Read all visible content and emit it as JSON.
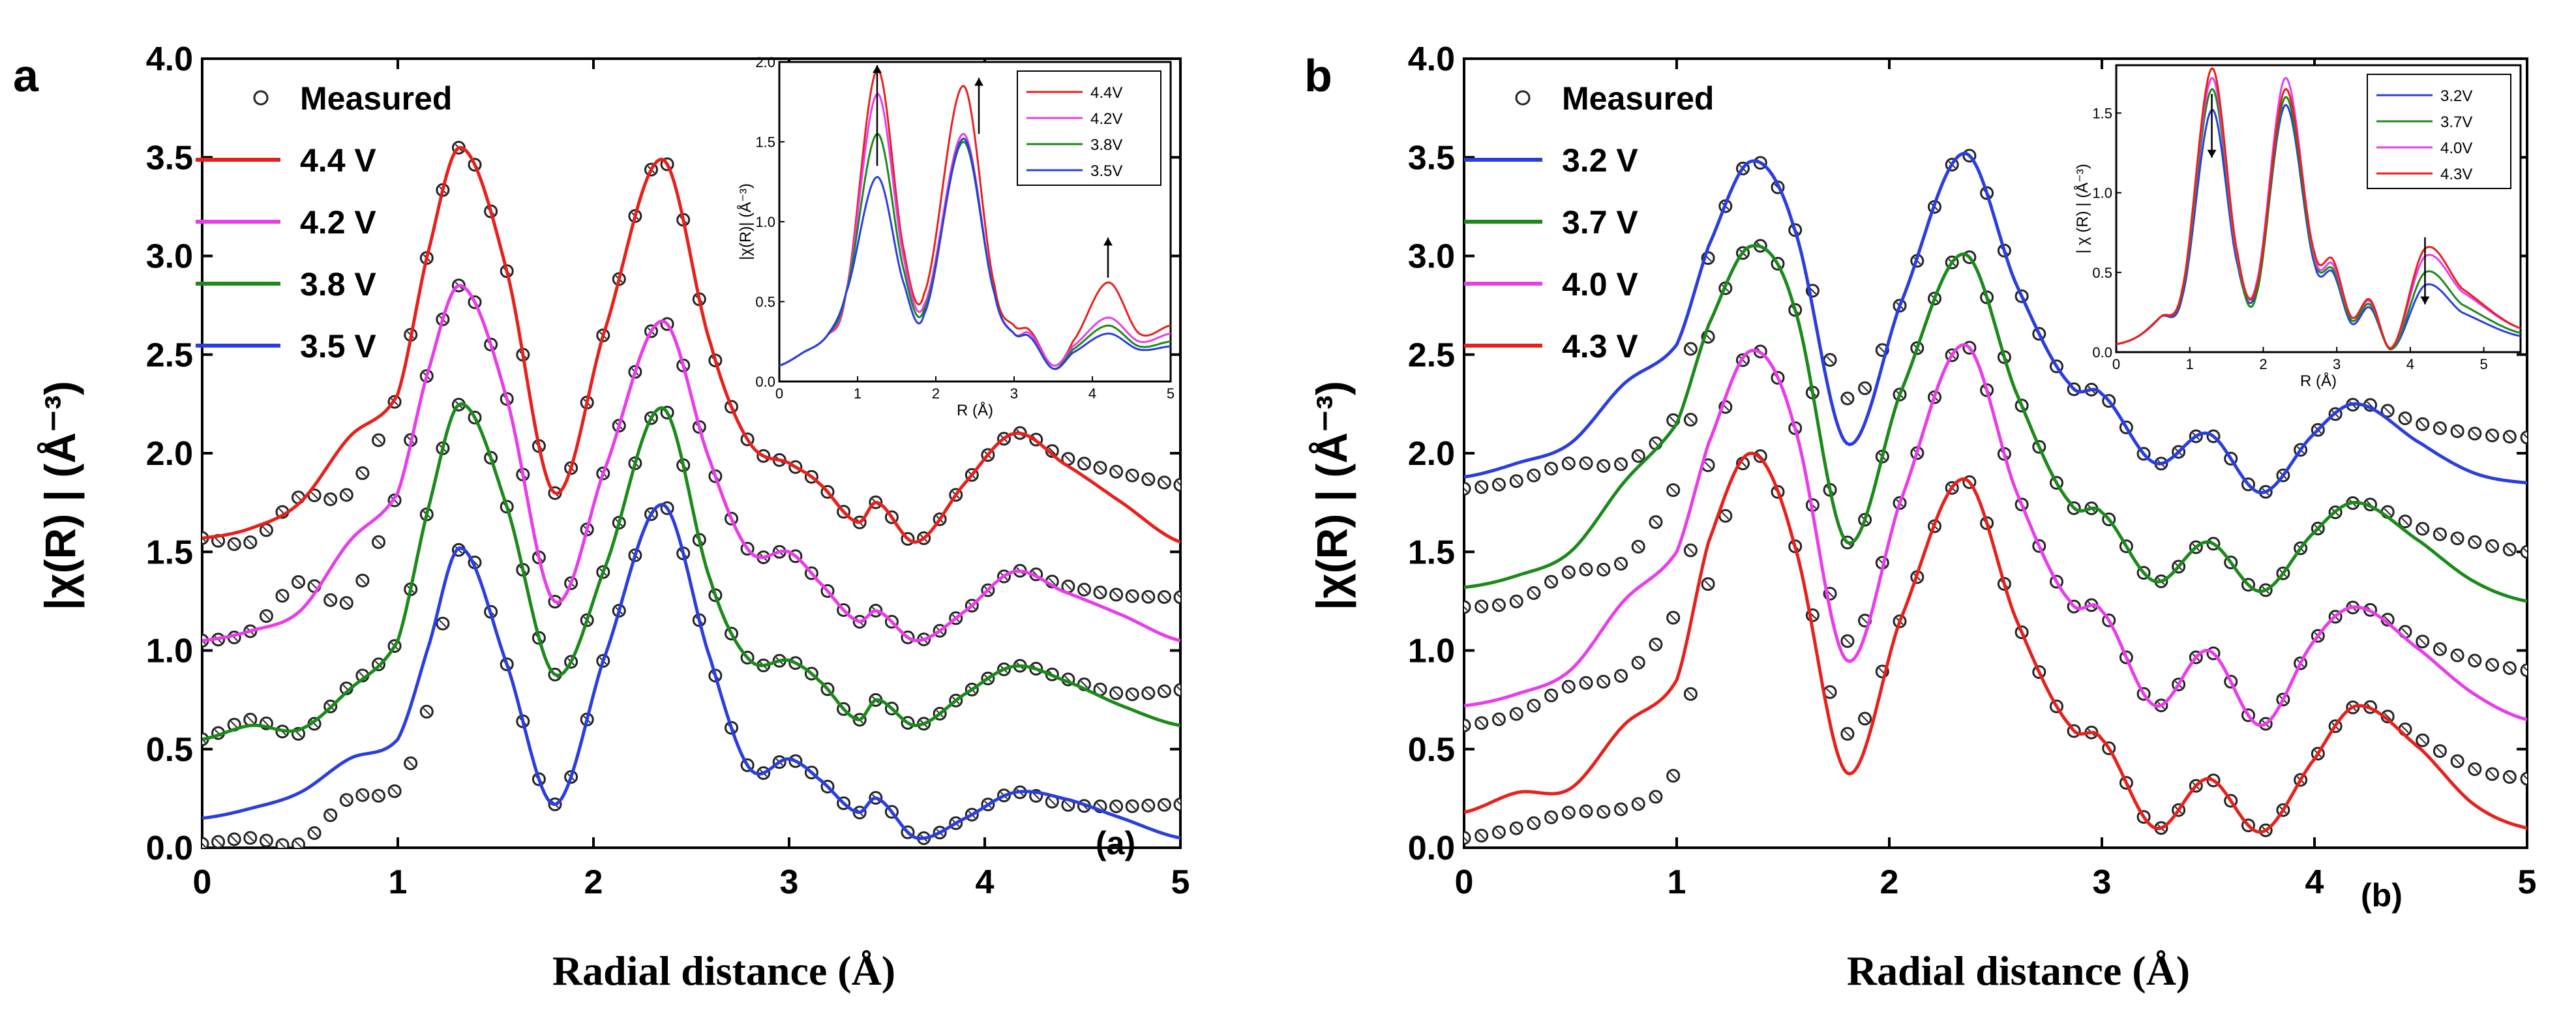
{
  "chart_data": [
    {
      "type": "line",
      "panel_letter": "a",
      "panel_tag": "(a)",
      "xlabel": "Radial distance (Å)",
      "ylabel": "|χ(R) |  (Å⁻³)",
      "xlim": [
        0,
        5
      ],
      "ylim": [
        0,
        4
      ],
      "xticks": [
        "0",
        "1",
        "2",
        "3",
        "4",
        "5"
      ],
      "yticks": [
        "0.0",
        "0.5",
        "1.0",
        "1.5",
        "2.0",
        "2.5",
        "3.0",
        "3.5",
        "4.0"
      ],
      "legend": {
        "measured_label": "Measured",
        "entries": [
          "4.4 V",
          "4.2 V",
          "3.8 V",
          "3.5 V"
        ]
      },
      "x_knots": [
        0,
        0.25,
        0.5,
        0.75,
        1.0,
        1.15,
        1.32,
        1.55,
        1.8,
        2.05,
        2.35,
        2.6,
        2.8,
        3.0,
        3.15,
        3.35,
        3.45,
        3.65,
        3.9,
        4.15,
        4.4,
        4.7,
        5.0
      ],
      "series": [
        {
          "name": "4.4 V",
          "color": "#e8201c",
          "y": [
            1.57,
            1.62,
            1.75,
            2.08,
            2.3,
            3.0,
            3.55,
            2.95,
            1.8,
            2.6,
            3.49,
            2.55,
            2.05,
            1.95,
            1.85,
            1.65,
            1.75,
            1.55,
            1.85,
            2.1,
            1.95,
            1.75,
            1.55
          ],
          "ym": [
            1.57,
            1.55,
            1.78,
            1.8,
            2.3,
            3.0,
            3.55,
            2.95,
            1.8,
            2.6,
            3.49,
            2.55,
            2.05,
            1.95,
            1.85,
            1.65,
            1.75,
            1.55,
            1.85,
            2.1,
            1.98,
            1.9,
            1.84
          ]
        },
        {
          "name": "4.2 V",
          "color": "#e83de8",
          "y": [
            1.05,
            1.1,
            1.2,
            1.55,
            1.8,
            2.4,
            2.85,
            2.3,
            1.25,
            1.9,
            2.67,
            1.95,
            1.5,
            1.5,
            1.35,
            1.15,
            1.2,
            1.05,
            1.2,
            1.4,
            1.3,
            1.18,
            1.05
          ],
          "ym": [
            1.05,
            1.1,
            1.35,
            1.25,
            1.8,
            2.4,
            2.85,
            2.3,
            1.25,
            1.9,
            2.67,
            1.95,
            1.5,
            1.5,
            1.35,
            1.15,
            1.2,
            1.05,
            1.2,
            1.4,
            1.33,
            1.28,
            1.27
          ]
        },
        {
          "name": "3.8 V",
          "color": "#1a8a1a",
          "y": [
            0.55,
            0.62,
            0.6,
            0.8,
            1.05,
            1.7,
            2.25,
            1.75,
            0.88,
            1.4,
            2.23,
            1.35,
            0.95,
            0.95,
            0.85,
            0.65,
            0.75,
            0.62,
            0.78,
            0.92,
            0.85,
            0.72,
            0.62
          ],
          "ym": [
            0.55,
            0.65,
            0.58,
            0.82,
            1.05,
            1.7,
            2.25,
            1.75,
            0.88,
            1.4,
            2.23,
            1.35,
            0.95,
            0.95,
            0.85,
            0.65,
            0.75,
            0.62,
            0.78,
            0.92,
            0.86,
            0.78,
            0.8
          ]
        },
        {
          "name": "3.5 V",
          "color": "#2a3ee0",
          "y": [
            0.15,
            0.2,
            0.28,
            0.45,
            0.55,
            1.0,
            1.52,
            0.95,
            0.22,
            0.95,
            1.74,
            0.95,
            0.4,
            0.45,
            0.35,
            0.18,
            0.25,
            0.05,
            0.15,
            0.28,
            0.25,
            0.15,
            0.05
          ],
          "ym": [
            0.02,
            0.05,
            0.02,
            0.25,
            0.3,
            0.7,
            1.52,
            0.95,
            0.22,
            0.95,
            1.74,
            0.95,
            0.4,
            0.45,
            0.35,
            0.18,
            0.25,
            0.05,
            0.15,
            0.28,
            0.22,
            0.21,
            0.22
          ]
        }
      ],
      "inset": {
        "xlabel": "R (Å)",
        "ylabel": "|χ(R)| (Å⁻³)",
        "xlim": [
          0,
          5
        ],
        "ylim": [
          0,
          2.0
        ],
        "xticks": [
          "0",
          "1",
          "2",
          "3",
          "4",
          "5"
        ],
        "yticks": [
          "0.0",
          "0.5",
          "1.0",
          "1.5",
          "2.0"
        ],
        "legend": [
          "4.4V",
          "4.2V",
          "3.8V",
          "3.5V"
        ],
        "x_knots": [
          0,
          0.3,
          0.6,
          0.85,
          1.25,
          1.6,
          1.85,
          2.35,
          2.75,
          3.0,
          3.2,
          3.5,
          3.75,
          4.2,
          4.6,
          5.0
        ],
        "series": [
          {
            "name": "4.4V",
            "color": "#e8201c",
            "y": [
              0.1,
              0.18,
              0.28,
              0.55,
              1.95,
              0.8,
              0.55,
              1.85,
              0.6,
              0.35,
              0.32,
              0.1,
              0.25,
              0.62,
              0.3,
              0.35
            ]
          },
          {
            "name": "4.2V",
            "color": "#e83de8",
            "y": [
              0.1,
              0.18,
              0.28,
              0.55,
              1.8,
              0.75,
              0.48,
              1.55,
              0.55,
              0.3,
              0.3,
              0.1,
              0.22,
              0.4,
              0.25,
              0.3
            ]
          },
          {
            "name": "3.8V",
            "color": "#1a8a1a",
            "y": [
              0.1,
              0.18,
              0.28,
              0.55,
              1.55,
              0.68,
              0.45,
              1.5,
              0.55,
              0.3,
              0.28,
              0.08,
              0.2,
              0.35,
              0.22,
              0.25
            ]
          },
          {
            "name": "3.5V",
            "color": "#2a3ee0",
            "y": [
              0.1,
              0.18,
              0.28,
              0.55,
              1.28,
              0.6,
              0.42,
              1.52,
              0.55,
              0.3,
              0.28,
              0.08,
              0.18,
              0.3,
              0.2,
              0.22
            ]
          }
        ]
      }
    },
    {
      "type": "line",
      "panel_letter": "b",
      "panel_tag": "(b)",
      "xlabel": "Radial distance (Å)",
      "ylabel": "|χ(R) |  (Å⁻³)",
      "xlim": [
        0,
        5
      ],
      "ylim": [
        0,
        4
      ],
      "xticks": [
        "0",
        "1",
        "2",
        "3",
        "4",
        "5"
      ],
      "yticks": [
        "0.0",
        "0.5",
        "1.0",
        "1.5",
        "2.0",
        "2.5",
        "3.0",
        "3.5",
        "4.0"
      ],
      "legend": {
        "measured_label": "Measured",
        "entries": [
          "3.2 V",
          "3.7 V",
          "4.0 V",
          "4.3 V"
        ]
      },
      "x_knots": [
        0,
        0.25,
        0.5,
        0.75,
        1.0,
        1.15,
        1.35,
        1.55,
        1.8,
        2.05,
        2.35,
        2.6,
        2.85,
        3.0,
        3.25,
        3.5,
        3.75,
        4.0,
        4.2,
        4.5,
        4.75,
        5.0
      ],
      "series": [
        {
          "name": "3.2 V",
          "color": "#2a3ee0",
          "y": [
            1.88,
            1.95,
            2.05,
            2.35,
            2.55,
            3.05,
            3.48,
            3.15,
            2.05,
            2.75,
            3.52,
            2.85,
            2.35,
            2.3,
            1.95,
            2.1,
            1.8,
            2.1,
            2.25,
            2.05,
            1.9,
            1.85
          ],
          "ym": [
            1.82,
            1.86,
            1.95,
            1.95,
            2.2,
            3.0,
            3.48,
            3.15,
            2.28,
            2.75,
            3.52,
            2.85,
            2.35,
            2.3,
            1.95,
            2.1,
            1.8,
            2.1,
            2.25,
            2.15,
            2.1,
            2.08
          ]
        },
        {
          "name": "3.7 V",
          "color": "#1a8a1a",
          "y": [
            1.32,
            1.38,
            1.5,
            1.85,
            2.15,
            2.65,
            3.05,
            2.75,
            1.55,
            2.3,
            3.01,
            2.3,
            1.75,
            1.7,
            1.35,
            1.55,
            1.3,
            1.6,
            1.75,
            1.55,
            1.35,
            1.25
          ],
          "ym": [
            1.22,
            1.25,
            1.4,
            1.45,
            1.85,
            2.6,
            3.05,
            2.75,
            1.55,
            2.3,
            3.01,
            2.3,
            1.75,
            1.7,
            1.35,
            1.55,
            1.3,
            1.6,
            1.75,
            1.62,
            1.55,
            1.5
          ]
        },
        {
          "name": "4.0 V",
          "color": "#e83de8",
          "y": [
            0.72,
            0.78,
            0.9,
            1.25,
            1.5,
            2.05,
            2.52,
            2.15,
            0.95,
            1.75,
            2.55,
            1.8,
            1.25,
            1.2,
            0.72,
            1.0,
            0.62,
            1.05,
            1.22,
            1.0,
            0.78,
            0.65
          ],
          "ym": [
            0.62,
            0.68,
            0.82,
            0.88,
            1.2,
            1.95,
            2.52,
            2.15,
            1.05,
            1.75,
            2.55,
            1.8,
            1.25,
            1.2,
            0.72,
            1.0,
            0.62,
            1.05,
            1.22,
            1.05,
            0.95,
            0.9
          ]
        },
        {
          "name": "4.3 V",
          "color": "#e8201c",
          "y": [
            0.18,
            0.28,
            0.3,
            0.62,
            0.85,
            1.55,
            2.0,
            1.55,
            0.38,
            1.15,
            1.87,
            1.15,
            0.62,
            0.55,
            0.1,
            0.35,
            0.08,
            0.45,
            0.72,
            0.5,
            0.22,
            0.1
          ],
          "ym": [
            0.05,
            0.1,
            0.18,
            0.2,
            0.4,
            1.35,
            2.0,
            1.55,
            0.58,
            1.15,
            1.87,
            1.15,
            0.62,
            0.55,
            0.1,
            0.35,
            0.08,
            0.45,
            0.72,
            0.55,
            0.4,
            0.35
          ]
        }
      ],
      "inset": {
        "xlabel": "R (Å)",
        "ylabel": "| χ (R) | (Å⁻³)",
        "xlim": [
          0,
          5.5
        ],
        "ylim": [
          0,
          1.8
        ],
        "xticks": [
          "0",
          "1",
          "2",
          "3",
          "4",
          "5"
        ],
        "yticks": [
          "0.0",
          "0.5",
          "1.0",
          "1.5"
        ],
        "legend": [
          "3.2V",
          "3.7V",
          "4.0V",
          "4.3V"
        ],
        "x_knots": [
          0,
          0.3,
          0.6,
          0.9,
          1.3,
          1.65,
          1.9,
          2.3,
          2.7,
          2.95,
          3.2,
          3.45,
          3.75,
          4.2,
          4.7,
          5.5
        ],
        "series": [
          {
            "name": "3.2V",
            "color": "#2a3ee0",
            "y": [
              0.05,
              0.1,
              0.22,
              0.35,
              1.52,
              0.55,
              0.38,
              1.55,
              0.55,
              0.5,
              0.18,
              0.28,
              0.02,
              0.42,
              0.25,
              0.1
            ]
          },
          {
            "name": "3.7V",
            "color": "#1a8a1a",
            "y": [
              0.05,
              0.1,
              0.22,
              0.38,
              1.65,
              0.58,
              0.35,
              1.6,
              0.58,
              0.52,
              0.2,
              0.3,
              0.02,
              0.5,
              0.3,
              0.12
            ]
          },
          {
            "name": "4.0V",
            "color": "#e83de8",
            "y": [
              0.05,
              0.1,
              0.22,
              0.4,
              1.72,
              0.6,
              0.42,
              1.72,
              0.6,
              0.55,
              0.22,
              0.32,
              0.03,
              0.6,
              0.38,
              0.15
            ]
          },
          {
            "name": "4.3V",
            "color": "#e8201c",
            "y": [
              0.05,
              0.1,
              0.22,
              0.4,
              1.78,
              0.62,
              0.4,
              1.65,
              0.62,
              0.58,
              0.22,
              0.33,
              0.03,
              0.65,
              0.4,
              0.15
            ]
          }
        ]
      }
    }
  ]
}
